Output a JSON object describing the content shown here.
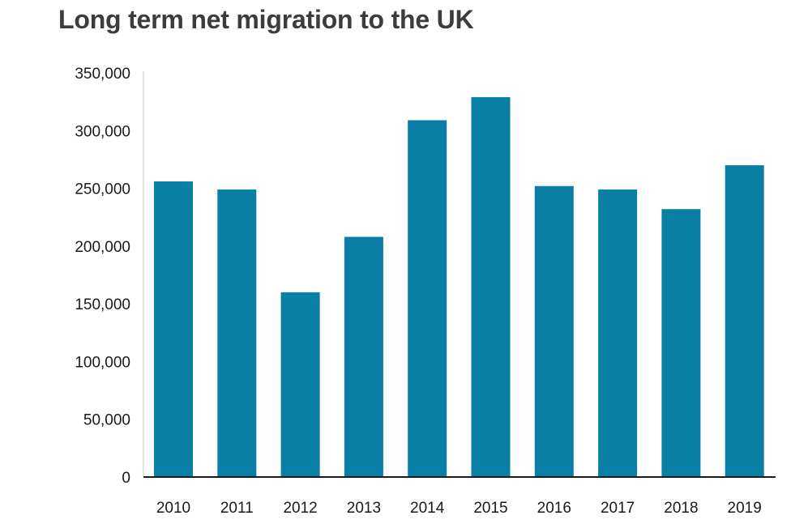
{
  "chart_data": {
    "type": "bar",
    "title": "Long term net migration to the UK",
    "xlabel": "",
    "ylabel": "",
    "categories": [
      "2010",
      "2011",
      "2012",
      "2013",
      "2014",
      "2015",
      "2016",
      "2017",
      "2018",
      "2019"
    ],
    "values": [
      256000,
      249000,
      160000,
      208000,
      309000,
      329000,
      252000,
      249000,
      232000,
      270000
    ],
    "ylim": [
      0,
      350000
    ],
    "yticks": [
      0,
      50000,
      100000,
      150000,
      200000,
      250000,
      300000,
      350000
    ],
    "ytick_labels": [
      "0",
      "50,000",
      "100,000",
      "150,000",
      "200,000",
      "250,000",
      "300,000",
      "350,000"
    ],
    "grid": false,
    "legend": "none",
    "colors": {
      "bar": "#0a7fa6",
      "axis": "#1a1a1a",
      "title": "#3c3c3c"
    }
  }
}
